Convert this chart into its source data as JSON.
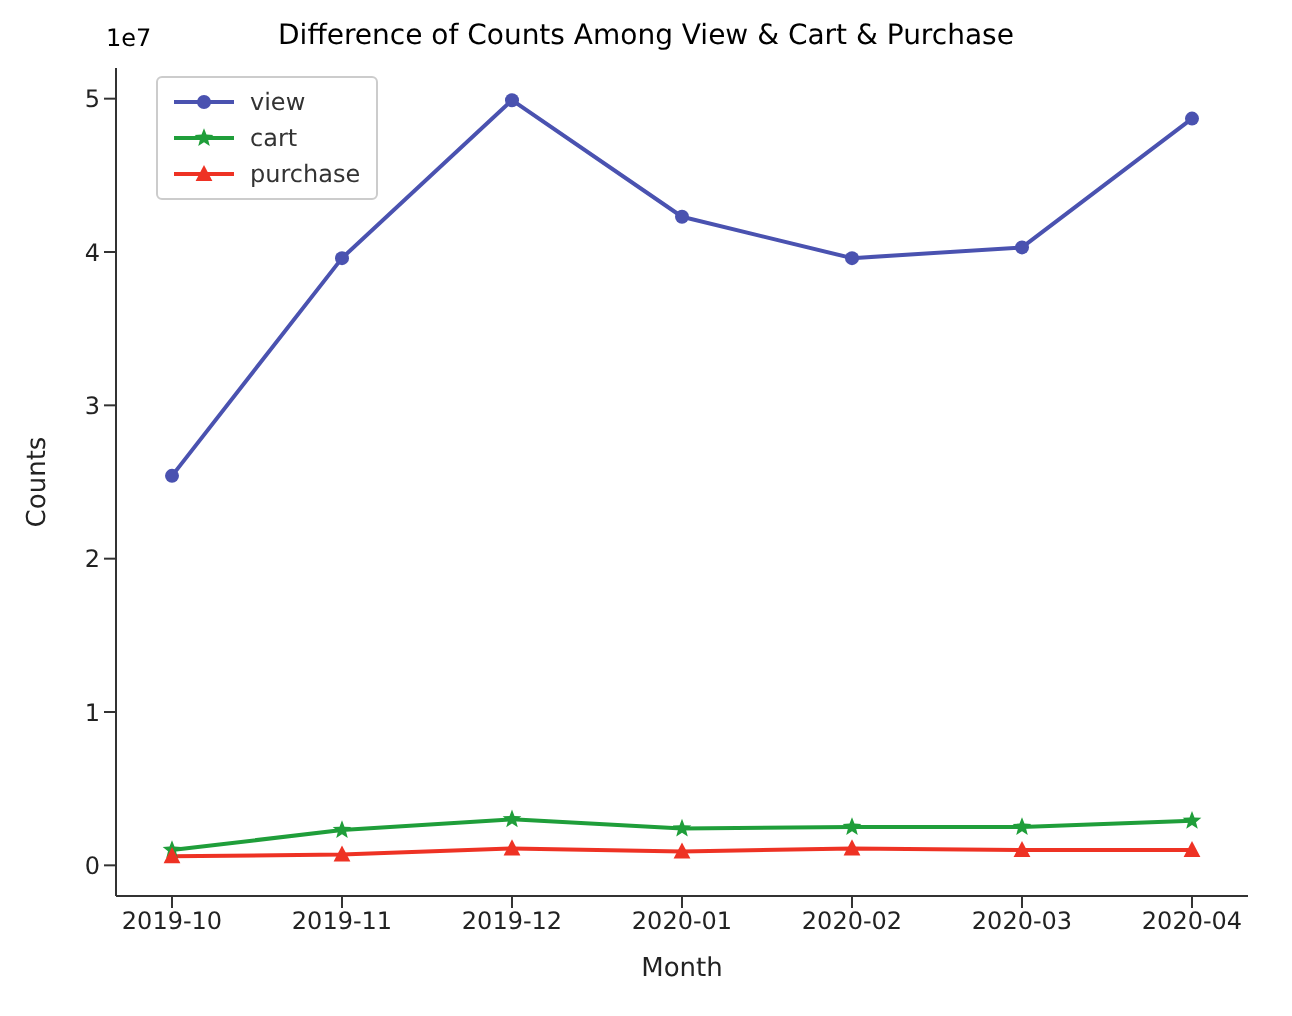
{
  "chart_data": {
    "type": "line",
    "title": "Difference of Counts Among View & Cart & Purchase",
    "xlabel": "Month",
    "ylabel": "Counts",
    "annotations": [
      "1e7"
    ],
    "categories": [
      "2019-10",
      "2019-11",
      "2019-12",
      "2020-01",
      "2020-02",
      "2020-03",
      "2020-04"
    ],
    "series": [
      {
        "name": "view",
        "color": "#4a52b0",
        "marker": "circle",
        "values": [
          2.54,
          3.96,
          4.99,
          4.23,
          3.96,
          4.03,
          4.87
        ]
      },
      {
        "name": "cart",
        "color": "#1f9e3a",
        "marker": "star",
        "values": [
          0.1,
          0.23,
          0.3,
          0.24,
          0.25,
          0.25,
          0.29
        ]
      },
      {
        "name": "purchase",
        "color": "#ee3224",
        "marker": "triangle",
        "values": [
          0.06,
          0.07,
          0.11,
          0.09,
          0.11,
          0.1,
          0.1
        ]
      }
    ],
    "ylim": [
      -0.2,
      5.2
    ],
    "yticks": [
      0,
      1,
      2,
      3,
      4,
      5
    ],
    "grid": false,
    "legend": "top left",
    "line_style": "solid"
  }
}
